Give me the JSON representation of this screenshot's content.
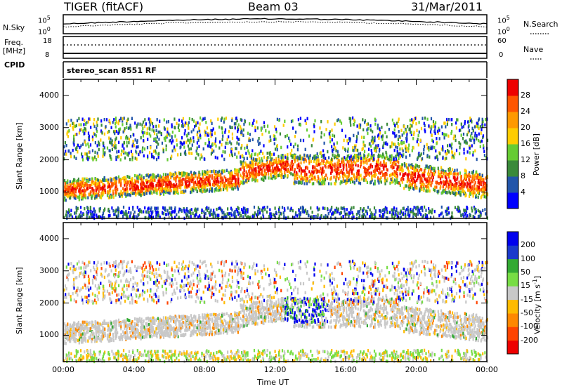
{
  "header": {
    "station": "TIGER (fitACF)",
    "beam": "Beam 03",
    "date": "31/Mar/2011"
  },
  "top_panels": {
    "nsky_label": "N.Sky",
    "nsky_top": "10^5",
    "nsky_bot": "10^0",
    "nsearch_label": "N.Search",
    "nsearch_top": "10^5",
    "nsearch_bot": "10^0",
    "freq_label_1": "Freq.",
    "freq_label_2": "[MHz]",
    "freq_top": "18",
    "freq_bot": "8",
    "nave_label": "Nave",
    "nave_top": "60",
    "nave_bot": "0",
    "cpid_label": "CPID",
    "cpid_value": "stereo_scan 8551 RF"
  },
  "colors": {
    "power_scale": [
      "#0000ff",
      "#2255aa",
      "#3a8a3a",
      "#66cc33",
      "#ffcc00",
      "#ff9900",
      "#ff5500",
      "#ee0000"
    ],
    "velocity_scale": [
      "#0000ee",
      "#1a3acc",
      "#33aa33",
      "#77dd44",
      "#c8c8c8",
      "#ffbb00",
      "#ff8800",
      "#ff4400",
      "#ee0000"
    ]
  },
  "chart_data": [
    {
      "type": "heatmap",
      "title": "",
      "ylabel": "Slant Range [km]",
      "xlabel": "",
      "ylim": [
        180,
        4500
      ],
      "yticks": [
        "1000",
        "2000",
        "3000",
        "4000"
      ],
      "colorbar_label": "Power [dB]",
      "colorbar_ticks": [
        "4",
        "8",
        "12",
        "16",
        "20",
        "24",
        "28"
      ]
    },
    {
      "type": "heatmap",
      "title": "",
      "ylabel": "Slant Range [km]",
      "xlabel": "Time UT",
      "ylim": [
        180,
        4500
      ],
      "xticks": [
        "00:00",
        "04:00",
        "08:00",
        "12:00",
        "16:00",
        "20:00",
        "00:00"
      ],
      "yticks": [
        "1000",
        "2000",
        "3000",
        "4000"
      ],
      "colorbar_label": "Velocity [m s^-1]",
      "colorbar_ticks": [
        "200",
        "100",
        "50",
        "15",
        "-15",
        "-50",
        "-100",
        "-200"
      ]
    }
  ]
}
